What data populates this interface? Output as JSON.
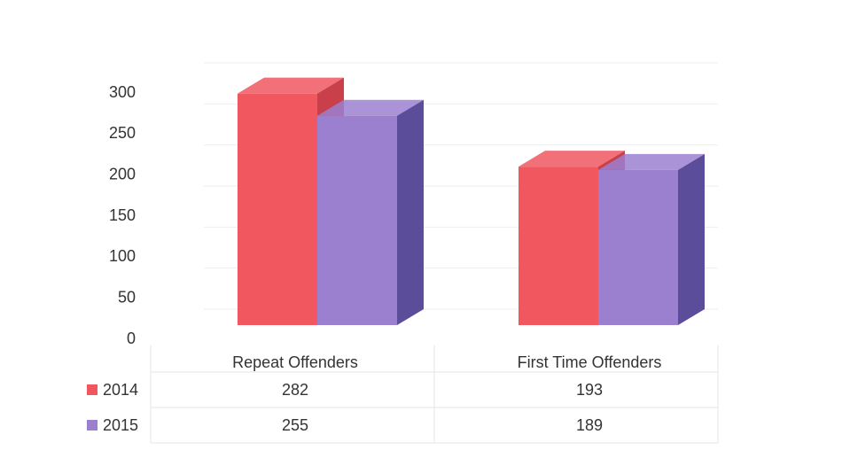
{
  "chart_data": {
    "type": "bar3d",
    "categories": [
      "Repeat Offenders",
      "First Time Offenders"
    ],
    "series": [
      {
        "name": "2014",
        "color": "#f0575f",
        "side": "#c9404a",
        "values": [
          282,
          193
        ]
      },
      {
        "name": "2015",
        "color": "#9b80d0",
        "side": "#5b4d9a",
        "values": [
          255,
          189
        ]
      }
    ],
    "ylim": [
      0,
      300
    ],
    "yticks": [
      0,
      50,
      100,
      150,
      200,
      250,
      300
    ],
    "grid": true,
    "data_table": true
  }
}
